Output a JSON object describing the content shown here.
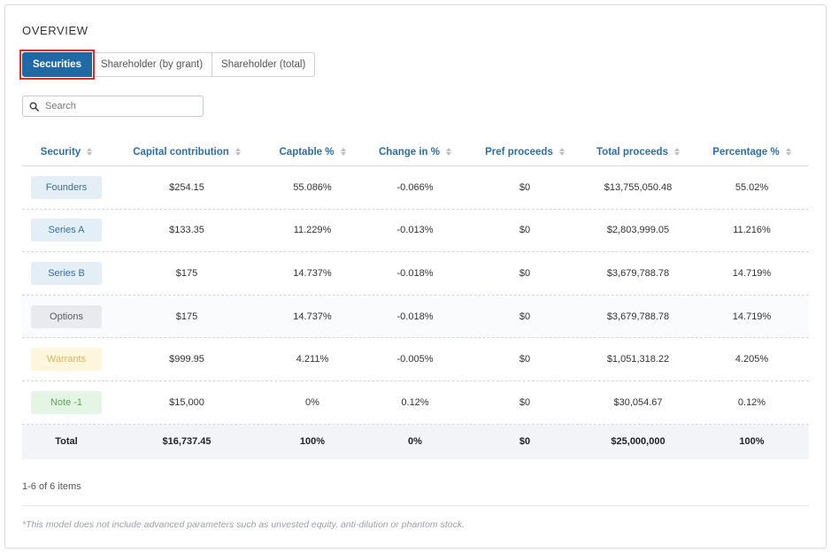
{
  "overview": {
    "title": "OVERVIEW"
  },
  "tabs": [
    {
      "label": "Securities",
      "active": true
    },
    {
      "label": "Shareholder (by grant)",
      "active": false
    },
    {
      "label": "Shareholder (total)",
      "active": false
    }
  ],
  "search": {
    "placeholder": "Search",
    "value": ""
  },
  "table": {
    "columns": [
      "Security",
      "Capital contribution",
      "Captable %",
      "Change in %",
      "Pref proceeds",
      "Total proceeds",
      "Percentage %"
    ],
    "rows": [
      {
        "security": "Founders",
        "badge_bg": "#e3eef7",
        "badge_fg": "#3a6f9c",
        "capital": "$254.15",
        "captable": "55.086%",
        "change": "-0.066%",
        "pref": "$0",
        "total": "$13,755,050.48",
        "pct": "55.02%"
      },
      {
        "security": "Series A",
        "badge_bg": "#e3eef7",
        "badge_fg": "#3a6f9c",
        "capital": "$133.35",
        "captable": "11.229%",
        "change": "-0.013%",
        "pref": "$0",
        "total": "$2,803,999.05",
        "pct": "11.216%"
      },
      {
        "security": "Series B",
        "badge_bg": "#e3eef7",
        "badge_fg": "#3a6f9c",
        "capital": "$175",
        "captable": "14.737%",
        "change": "-0.018%",
        "pref": "$0",
        "total": "$3,679,788.78",
        "pct": "14.719%"
      },
      {
        "security": "Options",
        "badge_bg": "#e9eaee",
        "badge_fg": "#555a62",
        "capital": "$175",
        "captable": "14.737%",
        "change": "-0.018%",
        "pref": "$0",
        "total": "$3,679,788.78",
        "pct": "14.719%"
      },
      {
        "security": "Warrants",
        "badge_bg": "#fdf6dc",
        "badge_fg": "#d8b84e",
        "capital": "$999.95",
        "captable": "4.211%",
        "change": "-0.005%",
        "pref": "$0",
        "total": "$1,051,318.22",
        "pct": "4.205%"
      },
      {
        "security": "Note -1",
        "badge_bg": "#e5f5e3",
        "badge_fg": "#5aa653",
        "capital": "$15,000",
        "captable": "0%",
        "change": "0.12%",
        "pref": "$0",
        "total": "$30,054.67",
        "pct": "0.12%"
      }
    ],
    "total": {
      "label": "Total",
      "capital": "$16,737.45",
      "captable": "100%",
      "change": "0%",
      "pref": "$0",
      "total": "$25,000,000",
      "pct": "100%"
    }
  },
  "pagination": {
    "text": "1-6 of 6 items"
  },
  "footnote": "*This model does not include advanced parameters such as unvested equity, anti-dilution or phantom stock.",
  "colors": {
    "accent": "#1f6aa5",
    "header_text": "#2d6ea5",
    "focus_ring": "#d32f2f"
  },
  "icons": {
    "search": "search-icon",
    "sort": "sort-icon"
  }
}
